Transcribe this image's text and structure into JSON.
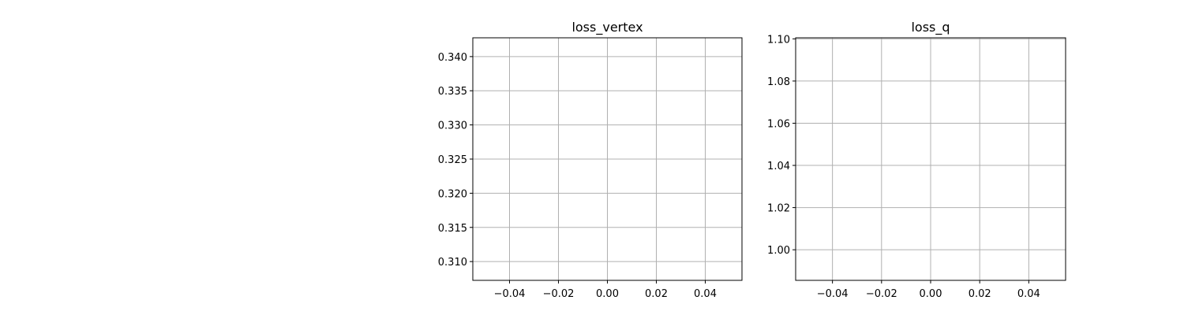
{
  "chart_data": [
    {
      "type": "line",
      "title": "loss_vertex",
      "xlabel": "",
      "ylabel": "",
      "x": [],
      "series": [],
      "xlim": [
        -0.055,
        0.055
      ],
      "ylim": [
        0.30725,
        0.34275
      ],
      "xticks": [
        -0.04,
        -0.02,
        0.0,
        0.02,
        0.04
      ],
      "xtick_labels": [
        "−0.04",
        "−0.02",
        "0.00",
        "0.02",
        "0.04"
      ],
      "yticks": [
        0.31,
        0.315,
        0.32,
        0.325,
        0.33,
        0.335,
        0.34
      ],
      "ytick_labels": [
        "0.310",
        "0.315",
        "0.320",
        "0.325",
        "0.330",
        "0.335",
        "0.340"
      ],
      "grid": true,
      "legend": "none"
    },
    {
      "type": "line",
      "title": "loss_q",
      "xlabel": "",
      "ylabel": "",
      "x": [],
      "series": [],
      "xlim": [
        -0.055,
        0.055
      ],
      "ylim": [
        0.9855,
        1.1005
      ],
      "xticks": [
        -0.04,
        -0.02,
        0.0,
        0.02,
        0.04
      ],
      "xtick_labels": [
        "−0.04",
        "−0.02",
        "0.00",
        "0.02",
        "0.04"
      ],
      "yticks": [
        1.0,
        1.02,
        1.04,
        1.06,
        1.08,
        1.1
      ],
      "ytick_labels": [
        "1.00",
        "1.02",
        "1.04",
        "1.06",
        "1.08",
        "1.10"
      ],
      "grid": true,
      "legend": "none"
    }
  ]
}
